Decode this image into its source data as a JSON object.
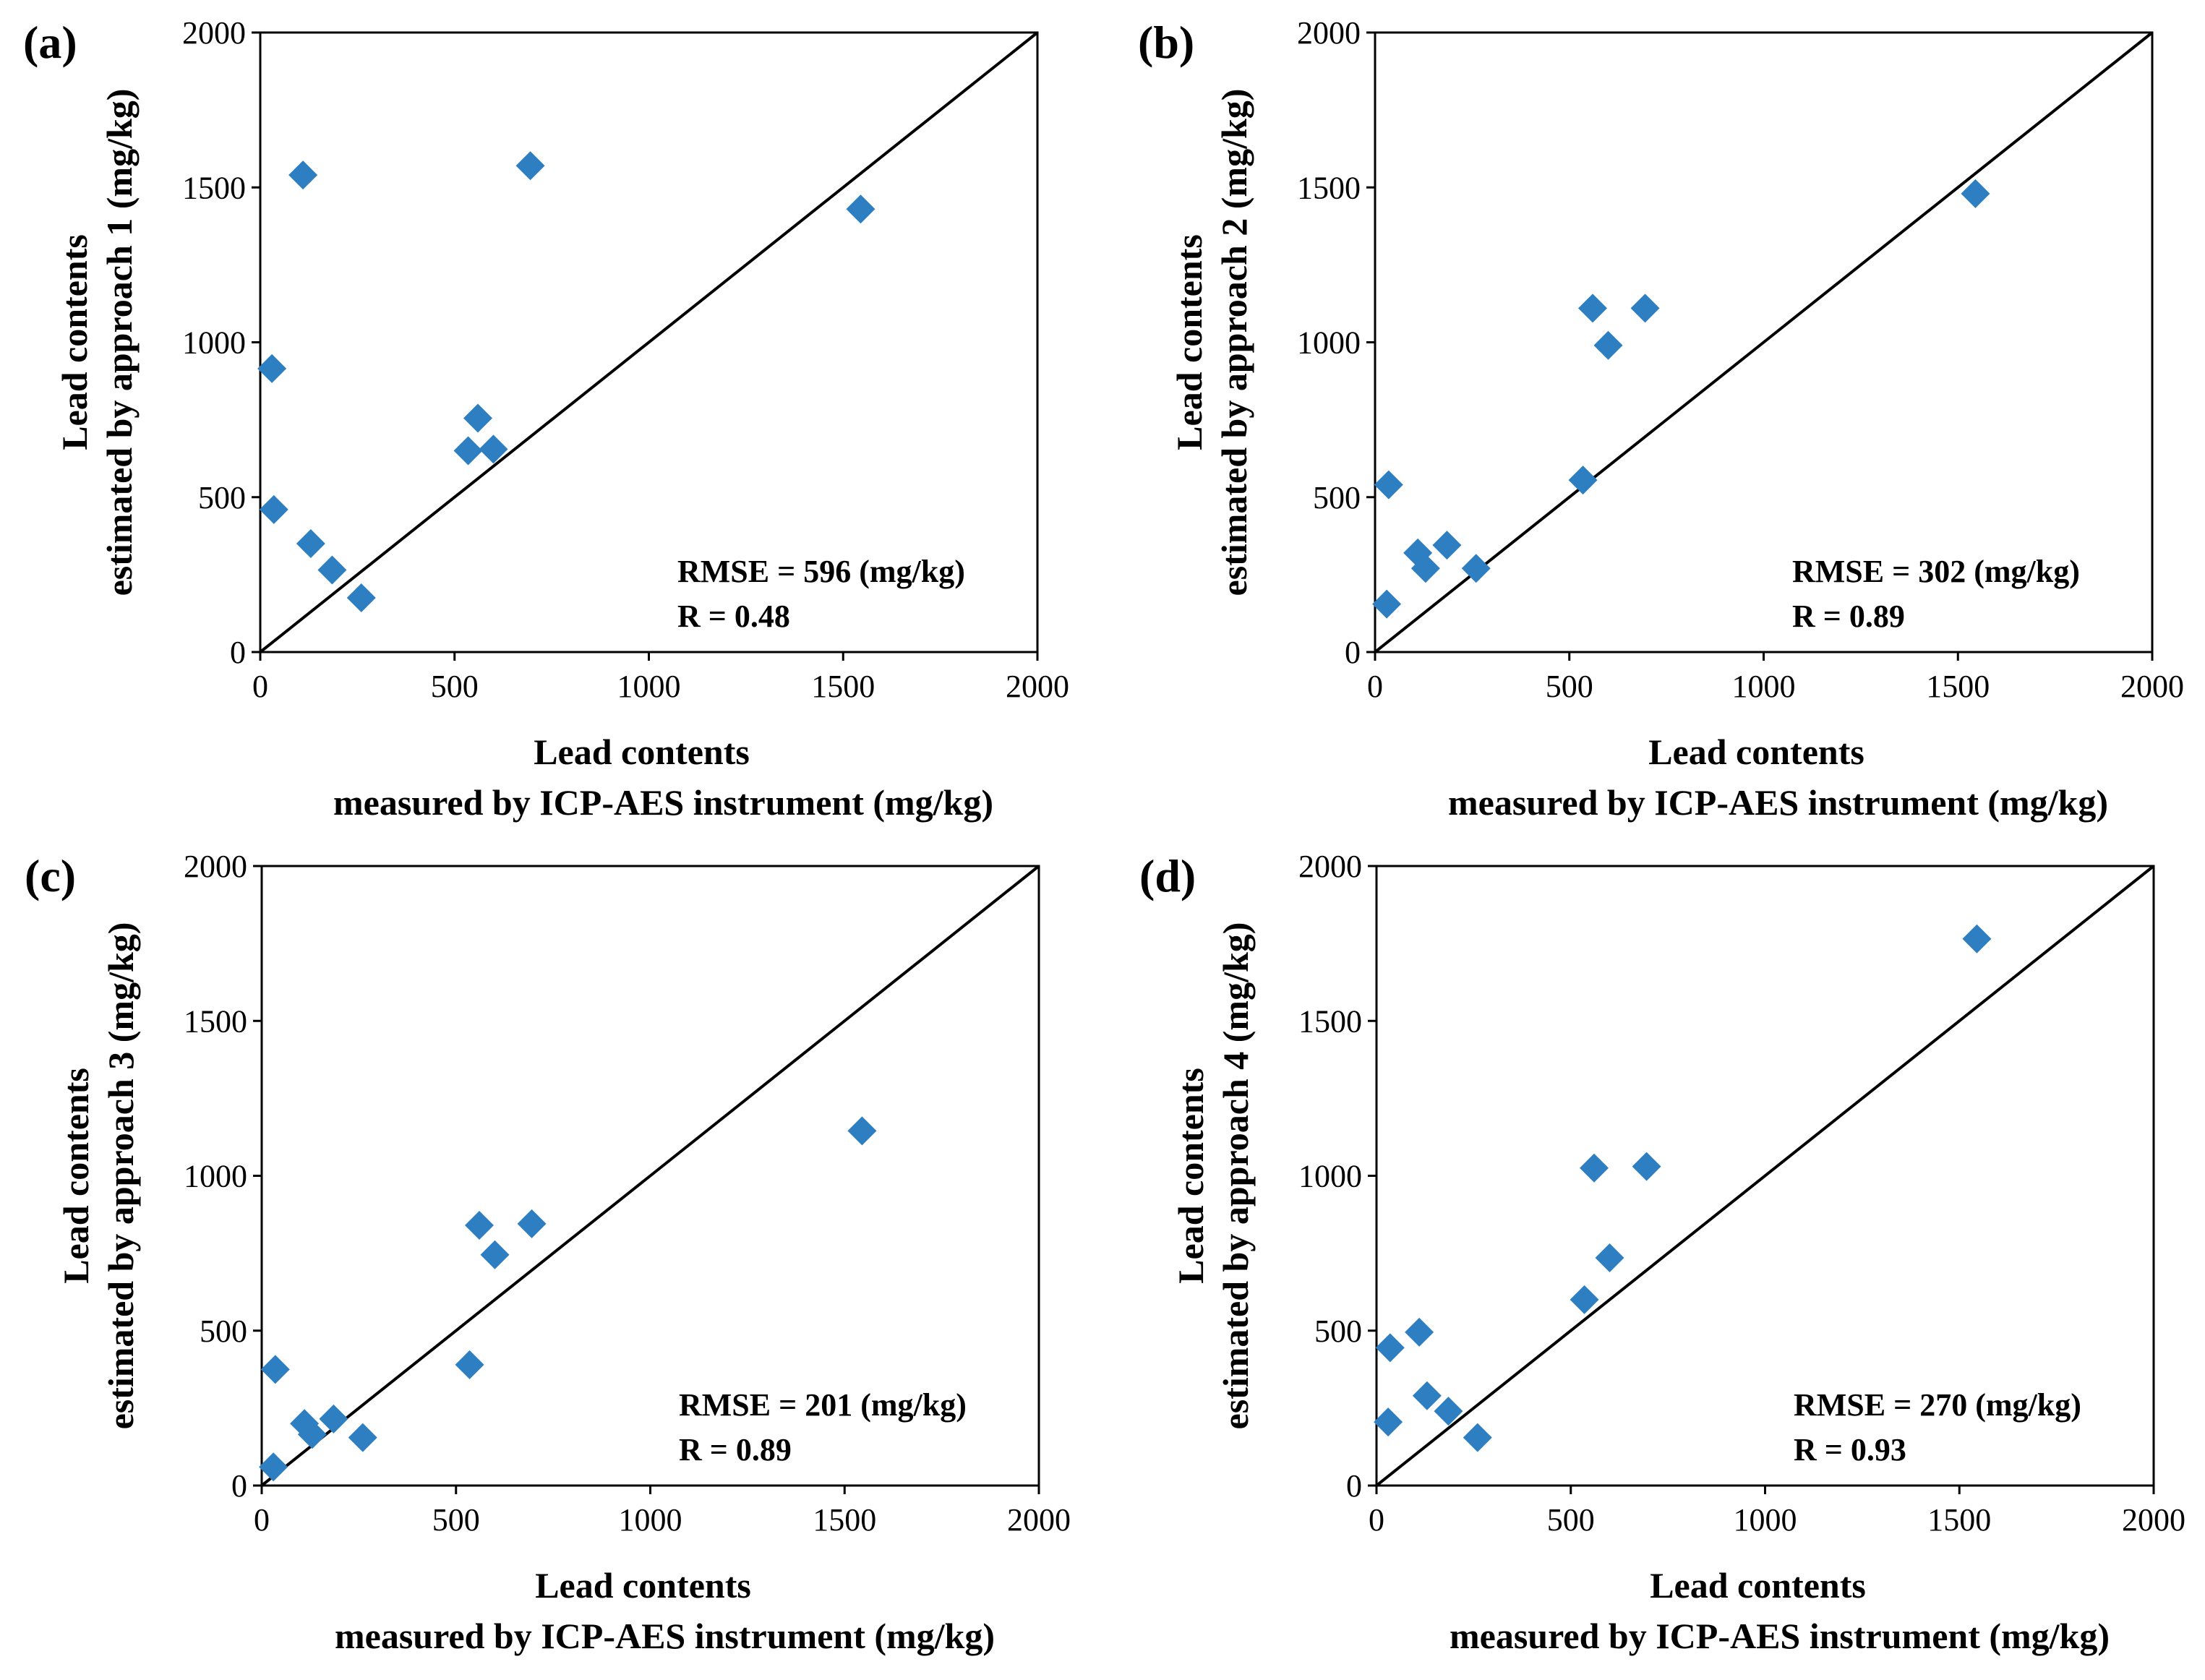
{
  "chart_data": [
    {
      "type": "scatter",
      "panel_label": "(a)",
      "xlabel_lines": [
        "Lead contents",
        "measured by ICP-AES instrument (mg/kg)"
      ],
      "ylabel_lines": [
        "Lead contents",
        "estimated by approach 1 (mg/kg)"
      ],
      "xlim": [
        0,
        2000
      ],
      "ylim": [
        0,
        2000
      ],
      "ticks": [
        0,
        500,
        1000,
        1500,
        2000
      ],
      "marker_color": "#2E7FC2",
      "grid": false,
      "reference_line": "y = x",
      "annotations": [
        "RMSE = 596 (mg/kg)",
        "R = 0.48"
      ],
      "x": [
        30,
        35,
        110,
        130,
        185,
        260,
        535,
        560,
        600,
        695,
        1545
      ],
      "y": [
        915,
        460,
        1540,
        350,
        265,
        175,
        650,
        755,
        655,
        1570,
        1430
      ]
    },
    {
      "type": "scatter",
      "panel_label": "(b)",
      "xlabel_lines": [
        "Lead contents",
        "measured by ICP-AES instrument (mg/kg)"
      ],
      "ylabel_lines": [
        "Lead contents",
        "estimated by approach 2 (mg/kg)"
      ],
      "xlim": [
        0,
        2000
      ],
      "ylim": [
        0,
        2000
      ],
      "ticks": [
        0,
        500,
        1000,
        1500,
        2000
      ],
      "marker_color": "#2E7FC2",
      "grid": false,
      "reference_line": "y = x",
      "annotations": [
        "RMSE = 302 (mg/kg)",
        "R = 0.89"
      ],
      "x": [
        30,
        35,
        110,
        130,
        185,
        260,
        535,
        560,
        600,
        695,
        1545
      ],
      "y": [
        155,
        540,
        320,
        270,
        345,
        270,
        555,
        1110,
        990,
        1110,
        1480
      ]
    },
    {
      "type": "scatter",
      "panel_label": "(c)",
      "xlabel_lines": [
        "Lead contents",
        "measured by ICP-AES instrument (mg/kg)"
      ],
      "ylabel_lines": [
        "Lead contents",
        "estimated by approach 3 (mg/kg)"
      ],
      "xlim": [
        0,
        2000
      ],
      "ylim": [
        0,
        2000
      ],
      "ticks": [
        0,
        500,
        1000,
        1500,
        2000
      ],
      "marker_color": "#2E7FC2",
      "grid": false,
      "reference_line": "y = x",
      "annotations": [
        "RMSE = 201 (mg/kg)",
        "R = 0.89"
      ],
      "x": [
        30,
        35,
        110,
        130,
        185,
        260,
        535,
        560,
        600,
        695,
        1545
      ],
      "y": [
        60,
        375,
        200,
        165,
        215,
        155,
        390,
        840,
        745,
        845,
        1145
      ]
    },
    {
      "type": "scatter",
      "panel_label": "(d)",
      "xlabel_lines": [
        "Lead contents",
        "measured by ICP-AES instrument (mg/kg)"
      ],
      "ylabel_lines": [
        "Lead contents",
        "estimated by approach 4 (mg/kg)"
      ],
      "xlim": [
        0,
        2000
      ],
      "ylim": [
        0,
        2000
      ],
      "ticks": [
        0,
        500,
        1000,
        1500,
        2000
      ],
      "marker_color": "#2E7FC2",
      "grid": false,
      "reference_line": "y = x",
      "annotations": [
        "RMSE = 270 (mg/kg)",
        "R = 0.93"
      ],
      "x": [
        30,
        35,
        110,
        130,
        185,
        260,
        535,
        560,
        600,
        695,
        1545
      ],
      "y": [
        205,
        445,
        495,
        290,
        240,
        155,
        600,
        1025,
        735,
        1030,
        1765
      ]
    }
  ]
}
